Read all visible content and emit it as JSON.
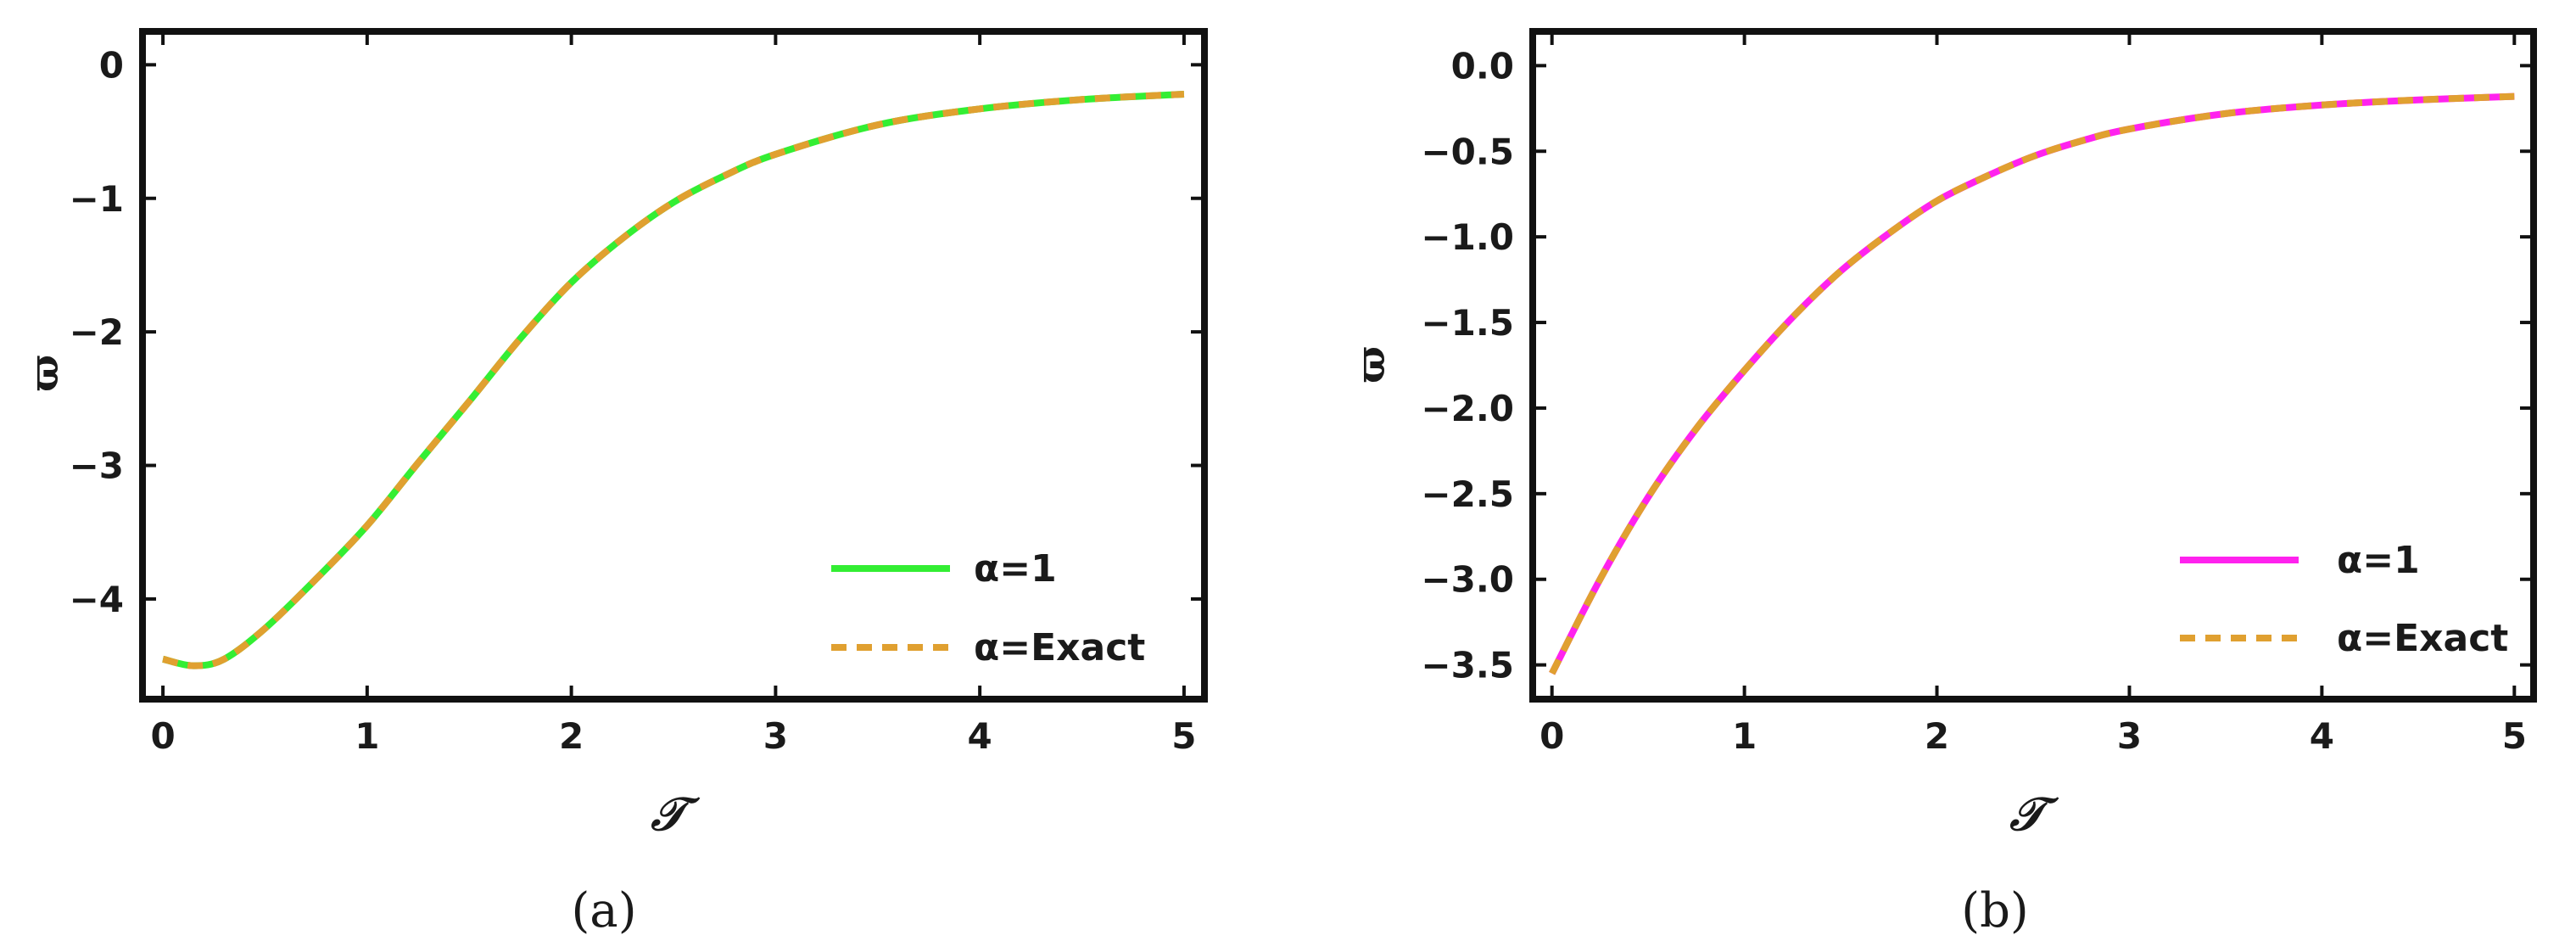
{
  "chart_data": [
    {
      "type": "line",
      "caption": "(a)",
      "xlabel": "𝒯",
      "ylabel": "ϖ",
      "xlim": [
        -0.1,
        5.1
      ],
      "ylim": [
        -4.75,
        0.25
      ],
      "xticks": [
        0,
        1,
        2,
        3,
        4,
        5
      ],
      "xtick_labels": [
        "0",
        "1",
        "2",
        "3",
        "4",
        "5"
      ],
      "yticks": [
        0,
        -1,
        -2,
        -3,
        -4
      ],
      "ytick_labels": [
        "0",
        "−1",
        "−2",
        "−3",
        "−4"
      ],
      "legend_position": "bottom-right",
      "series": [
        {
          "name": "α=1",
          "color": "#33ee33",
          "style": "solid",
          "x": [
            0,
            0.15,
            0.3,
            0.5,
            0.75,
            1,
            1.25,
            1.5,
            1.75,
            2,
            2.25,
            2.5,
            2.75,
            3,
            3.5,
            4,
            4.5,
            5
          ],
          "y": [
            -4.45,
            -4.5,
            -4.45,
            -4.22,
            -3.85,
            -3.45,
            -2.98,
            -2.52,
            -2.05,
            -1.63,
            -1.3,
            -1.03,
            -0.83,
            -0.67,
            -0.45,
            -0.33,
            -0.26,
            -0.22
          ]
        },
        {
          "name": "α=Exact",
          "color": "#e0a030",
          "style": "dashed",
          "x": [
            0,
            0.15,
            0.3,
            0.5,
            0.75,
            1,
            1.25,
            1.5,
            1.75,
            2,
            2.25,
            2.5,
            2.75,
            3,
            3.5,
            4,
            4.5,
            5
          ],
          "y": [
            -4.45,
            -4.5,
            -4.45,
            -4.22,
            -3.85,
            -3.45,
            -2.98,
            -2.52,
            -2.05,
            -1.63,
            -1.3,
            -1.03,
            -0.83,
            -0.67,
            -0.45,
            -0.33,
            -0.26,
            -0.22
          ]
        }
      ]
    },
    {
      "type": "line",
      "caption": "(b)",
      "xlabel": "𝒯",
      "ylabel": "ϖ",
      "xlim": [
        -0.1,
        5.1
      ],
      "ylim": [
        -3.7,
        0.2
      ],
      "xticks": [
        0,
        1,
        2,
        3,
        4,
        5
      ],
      "xtick_labels": [
        "0",
        "1",
        "2",
        "3",
        "4",
        "5"
      ],
      "yticks": [
        0,
        -0.5,
        -1,
        -1.5,
        -2,
        -2.5,
        -3,
        -3.5
      ],
      "ytick_labels": [
        "0.0",
        "−0.5",
        "−1.0",
        "−1.5",
        "−2.0",
        "−2.5",
        "−3.0",
        "−3.5"
      ],
      "legend_position": "bottom-right",
      "series": [
        {
          "name": "α=1",
          "color": "#ff22ee",
          "style": "solid",
          "x": [
            0,
            0.25,
            0.5,
            0.75,
            1,
            1.25,
            1.5,
            1.75,
            2,
            2.25,
            2.5,
            2.75,
            3,
            3.5,
            4,
            4.5,
            5
          ],
          "y": [
            -3.55,
            -3.0,
            -2.52,
            -2.12,
            -1.78,
            -1.47,
            -1.2,
            -0.98,
            -0.79,
            -0.65,
            -0.53,
            -0.44,
            -0.37,
            -0.28,
            -0.23,
            -0.2,
            -0.18
          ]
        },
        {
          "name": "α=Exact",
          "color": "#e0a030",
          "style": "dashed",
          "x": [
            0,
            0.25,
            0.5,
            0.75,
            1,
            1.25,
            1.5,
            1.75,
            2,
            2.25,
            2.5,
            2.75,
            3,
            3.5,
            4,
            4.5,
            5
          ],
          "y": [
            -3.55,
            -3.0,
            -2.52,
            -2.12,
            -1.78,
            -1.47,
            -1.2,
            -0.98,
            -0.79,
            -0.65,
            -0.53,
            -0.44,
            -0.37,
            -0.28,
            -0.23,
            -0.2,
            -0.18
          ]
        }
      ]
    }
  ]
}
